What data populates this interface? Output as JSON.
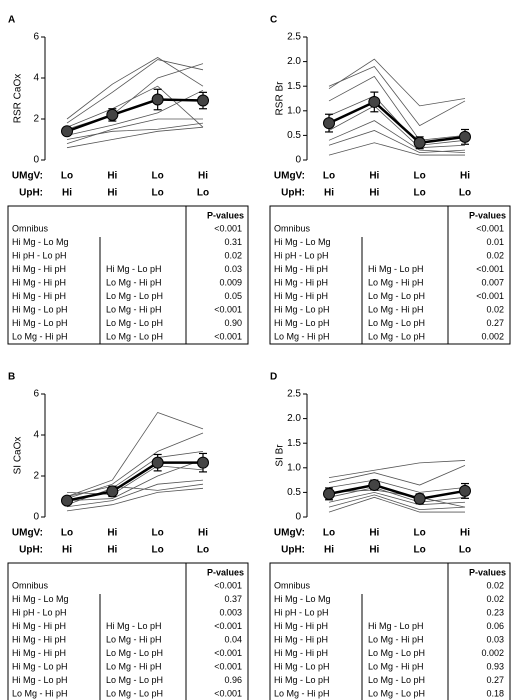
{
  "chart_data": [
    {
      "type": "line",
      "label": "A",
      "ylabel": "RSR CaOx",
      "ylim": [
        0,
        6
      ],
      "yticks": [
        0,
        2,
        4,
        6
      ],
      "x_rows": [
        {
          "label": "UMgV:",
          "values": [
            "Lo",
            "Hi",
            "Lo",
            "Hi"
          ]
        },
        {
          "label": "UpH:",
          "values": [
            "Hi",
            "Hi",
            "Lo",
            "Lo"
          ]
        }
      ],
      "mean": {
        "values": [
          1.4,
          2.2,
          2.95,
          2.9
        ],
        "errors": [
          0.2,
          0.3,
          0.5,
          0.4
        ],
        "color": "#000000",
        "marker_color": "#444444"
      },
      "lines_color": "#555555",
      "lines": [
        [
          2.0,
          3.7,
          5.0,
          3.6
        ],
        [
          1.8,
          3.3,
          4.9,
          4.4
        ],
        [
          1.5,
          2.2,
          4.0,
          4.7
        ],
        [
          1.6,
          2.5,
          3.6,
          1.6
        ],
        [
          1.2,
          1.7,
          2.3,
          3.4
        ],
        [
          0.8,
          1.5,
          2.0,
          2.0
        ],
        [
          1.0,
          1.4,
          1.5,
          1.8
        ],
        [
          0.6,
          1.0,
          1.4,
          1.6
        ]
      ],
      "table": {
        "header": "P-values",
        "rows": [
          {
            "comparison": "Omnibus",
            "p": "<0.001"
          },
          {
            "comparison": "Hi Mg - Lo Mg",
            "p": "0.31"
          },
          {
            "comparison": "Hi pH - Lo pH",
            "p": "0.02"
          },
          {
            "comparison": "Hi Mg - Hi pH",
            "versus": "Hi Mg - Lo pH",
            "p": "0.03"
          },
          {
            "comparison": "Hi Mg - Hi pH",
            "versus": "Lo Mg - Hi pH",
            "p": "0.009"
          },
          {
            "comparison": "Hi Mg - Hi pH",
            "versus": "Lo Mg - Lo pH",
            "p": "0.05"
          },
          {
            "comparison": "Hi Mg - Lo pH",
            "versus": "Lo Mg - Hi pH",
            "p": "<0.001"
          },
          {
            "comparison": "Hi Mg - Lo pH",
            "versus": "Lo Mg - Lo pH",
            "p": "0.90"
          },
          {
            "comparison": "Lo Mg - Hi pH",
            "versus": "Lo Mg - Lo pH",
            "p": "<0.001"
          }
        ]
      }
    },
    {
      "type": "line",
      "label": "C",
      "ylabel": "RSR Br",
      "ylim": [
        0,
        2.5
      ],
      "yticks": [
        0,
        0.5,
        {
          "value": 1,
          "label": "1.0"
        },
        1.5,
        {
          "value": 2,
          "label": "2.0"
        },
        2.5
      ],
      "x_rows": [
        {
          "label": "UMgV:",
          "values": [
            "Lo",
            "Hi",
            "Lo",
            "Hi"
          ]
        },
        {
          "label": "UpH:",
          "values": [
            "Hi",
            "Hi",
            "Lo",
            "Lo"
          ]
        }
      ],
      "mean": {
        "values": [
          0.75,
          1.18,
          0.35,
          0.47
        ],
        "errors": [
          0.18,
          0.2,
          0.12,
          0.15
        ],
        "color": "#000000",
        "marker_color": "#444444"
      },
      "lines_color": "#555555",
      "lines": [
        [
          1.45,
          2.05,
          1.1,
          1.25
        ],
        [
          1.5,
          1.9,
          0.7,
          1.2
        ],
        [
          1.2,
          1.7,
          0.4,
          0.5
        ],
        [
          0.9,
          1.3,
          0.3,
          0.4
        ],
        [
          0.6,
          1.1,
          0.25,
          0.3
        ],
        [
          0.4,
          0.8,
          0.2,
          0.15
        ],
        [
          0.3,
          0.6,
          0.15,
          0.2
        ],
        [
          0.1,
          0.35,
          0.1,
          0.1
        ]
      ],
      "table": {
        "header": "P-values",
        "rows": [
          {
            "comparison": "Omnibus",
            "p": "<0.001"
          },
          {
            "comparison": "Hi Mg - Lo Mg",
            "p": "0.01"
          },
          {
            "comparison": "Hi pH - Lo pH",
            "p": "0.02"
          },
          {
            "comparison": "Hi Mg - Hi pH",
            "versus": "Hi Mg - Lo pH",
            "p": "<0.001"
          },
          {
            "comparison": "Hi Mg - Hi pH",
            "versus": "Lo Mg - Hi pH",
            "p": "0.007"
          },
          {
            "comparison": "Hi Mg - Hi pH",
            "versus": "Lo Mg - Lo pH",
            "p": "<0.001"
          },
          {
            "comparison": "Hi Mg - Lo pH",
            "versus": "Lo Mg - Hi pH",
            "p": "0.02"
          },
          {
            "comparison": "Hi Mg - Lo pH",
            "versus": "Lo Mg - Lo pH",
            "p": "0.27"
          },
          {
            "comparison": "Lo Mg - Hi pH",
            "versus": "Lo Mg - Lo pH",
            "p": "0.002"
          }
        ]
      }
    },
    {
      "type": "line",
      "label": "B",
      "ylabel": "SI CaOx",
      "ylim": [
        0,
        6
      ],
      "yticks": [
        0,
        2,
        4,
        6
      ],
      "x_rows": [
        {
          "label": "UMgV:",
          "values": [
            "Lo",
            "Hi",
            "Lo",
            "Hi"
          ]
        },
        {
          "label": "UpH:",
          "values": [
            "Hi",
            "Hi",
            "Lo",
            "Lo"
          ]
        }
      ],
      "mean": {
        "values": [
          0.8,
          1.25,
          2.65,
          2.65
        ],
        "errors": [
          0.1,
          0.25,
          0.4,
          0.45
        ],
        "color": "#000000",
        "marker_color": "#444444"
      },
      "lines_color": "#555555",
      "lines": [
        [
          1.0,
          1.8,
          5.1,
          4.3
        ],
        [
          0.9,
          1.6,
          3.2,
          4.1
        ],
        [
          0.6,
          1.4,
          2.9,
          3.2
        ],
        [
          1.2,
          1.1,
          2.5,
          2.3
        ],
        [
          0.8,
          0.9,
          2.0,
          2.8
        ],
        [
          0.5,
          0.8,
          1.6,
          1.8
        ],
        [
          1.0,
          1.5,
          1.3,
          1.6
        ],
        [
          0.3,
          0.6,
          1.2,
          1.4
        ]
      ],
      "table": {
        "header": "P-values",
        "rows": [
          {
            "comparison": "Omnibus",
            "p": "<0.001"
          },
          {
            "comparison": "Hi Mg - Lo Mg",
            "p": "0.37"
          },
          {
            "comparison": "Hi pH - Lo pH",
            "p": "0.003"
          },
          {
            "comparison": "Hi Mg - Hi pH",
            "versus": "Hi Mg - Lo pH",
            "p": "<0.001"
          },
          {
            "comparison": "Hi Mg - Hi pH",
            "versus": "Lo Mg - Hi pH",
            "p": "0.04"
          },
          {
            "comparison": "Hi Mg - Hi pH",
            "versus": "Lo Mg - Lo pH",
            "p": "<0.001"
          },
          {
            "comparison": "Hi Mg - Lo pH",
            "versus": "Lo Mg - Hi pH",
            "p": "<0.001"
          },
          {
            "comparison": "Hi Mg - Lo pH",
            "versus": "Lo Mg - Lo pH",
            "p": "0.96"
          },
          {
            "comparison": "Lo Mg - Hi pH",
            "versus": "Lo Mg - Lo pH",
            "p": "<0.001"
          }
        ]
      }
    },
    {
      "type": "line",
      "label": "D",
      "ylabel": "SI Br",
      "ylim": [
        0,
        2.5
      ],
      "yticks": [
        0,
        0.5,
        {
          "value": 1,
          "label": "1.0"
        },
        1.5,
        {
          "value": 2,
          "label": "2.0"
        },
        2.5
      ],
      "x_rows": [
        {
          "label": "UMgV:",
          "values": [
            "Lo",
            "Hi",
            "Lo",
            "Hi"
          ]
        },
        {
          "label": "UpH:",
          "values": [
            "Hi",
            "Hi",
            "Lo",
            "Lo"
          ]
        }
      ],
      "mean": {
        "values": [
          0.47,
          0.65,
          0.37,
          0.53
        ],
        "errors": [
          0.12,
          0.1,
          0.1,
          0.15
        ],
        "color": "#000000",
        "marker_color": "#444444"
      },
      "lines_color": "#555555",
      "lines": [
        [
          0.8,
          0.95,
          1.1,
          1.15
        ],
        [
          0.7,
          0.9,
          0.65,
          1.05
        ],
        [
          0.6,
          0.75,
          0.5,
          0.6
        ],
        [
          0.4,
          0.6,
          0.3,
          0.4
        ],
        [
          0.3,
          0.5,
          0.25,
          0.3
        ],
        [
          0.2,
          0.45,
          0.15,
          0.2
        ],
        [
          0.1,
          0.4,
          0.1,
          0.1
        ],
        [
          0.5,
          0.55,
          0.4,
          0.2
        ]
      ],
      "table": {
        "header": "P-values",
        "rows": [
          {
            "comparison": "Omnibus",
            "p": "0.02"
          },
          {
            "comparison": "Hi Mg - Lo Mg",
            "p": "0.02"
          },
          {
            "comparison": "Hi pH - Lo pH",
            "p": "0.23"
          },
          {
            "comparison": "Hi Mg - Hi pH",
            "versus": "Hi Mg - Lo pH",
            "p": "0.06"
          },
          {
            "comparison": "Hi Mg - Hi pH",
            "versus": "Lo Mg - Hi pH",
            "p": "0.03"
          },
          {
            "comparison": "Hi Mg - Hi pH",
            "versus": "Lo Mg - Lo pH",
            "p": "0.002"
          },
          {
            "comparison": "Hi Mg - Lo pH",
            "versus": "Lo Mg - Hi pH",
            "p": "0.93"
          },
          {
            "comparison": "Hi Mg - Lo pH",
            "versus": "Lo Mg - Lo pH",
            "p": "0.27"
          },
          {
            "comparison": "Lo Mg - Hi pH",
            "versus": "Lo Mg - Lo pH",
            "p": "0.18"
          }
        ]
      }
    }
  ]
}
